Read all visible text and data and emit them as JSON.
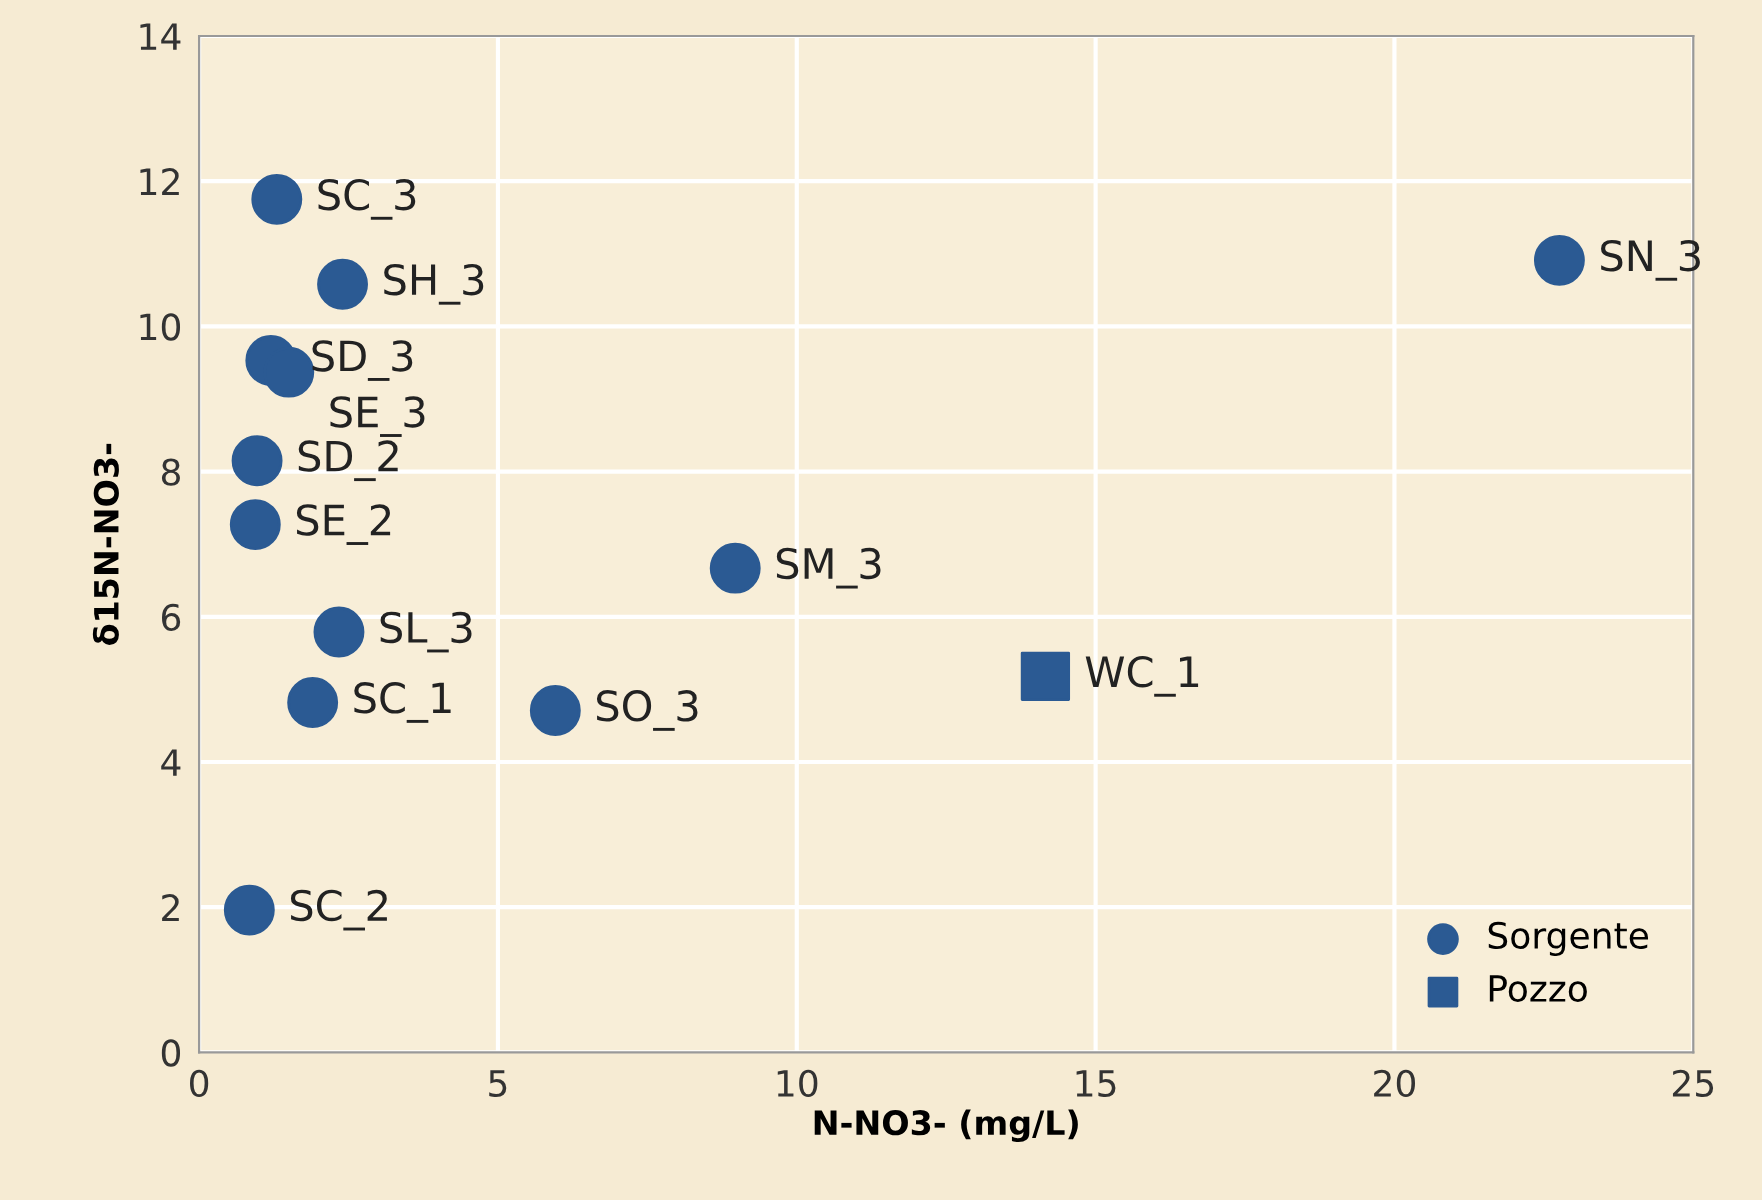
{
  "chart_data": {
    "type": "scatter",
    "xlabel": "N-NO3- (mg/L)",
    "ylabel": "δ15N-NO3-",
    "xlim": [
      0,
      25
    ],
    "ylim": [
      0,
      14
    ],
    "xticks": [
      0,
      5,
      10,
      15,
      20,
      25
    ],
    "yticks": [
      0,
      2,
      4,
      6,
      8,
      10,
      12,
      14
    ],
    "grid": true,
    "legend": "bottom right",
    "series": [
      {
        "name": "Sorgente",
        "color": "#2b5a93",
        "marker": "circle",
        "x": [
          1.3,
          2.4,
          1.2,
          1.5,
          0.97,
          0.94,
          2.34,
          1.9,
          5.96,
          8.97,
          22.76,
          0.84
        ],
        "values": [
          11.75,
          10.58,
          9.53,
          9.37,
          8.15,
          7.27,
          5.79,
          4.82,
          4.71,
          6.67,
          10.91,
          1.96
        ]
      },
      {
        "name": "Pozzo",
        "color": "#2b5a93",
        "marker": "square",
        "x": [
          14.16
        ],
        "values": [
          5.18
        ]
      }
    ],
    "annotations": [
      {
        "text": "SC_3",
        "x": 1.3,
        "y": 11.75
      },
      {
        "text": "SH_3",
        "x": 2.4,
        "y": 10.58
      },
      {
        "text": "SD_3",
        "x": 1.2,
        "y": 9.53
      },
      {
        "text": "SE_3",
        "x": 1.5,
        "y": 9.37
      },
      {
        "text": "SD_2",
        "x": 0.97,
        "y": 8.15
      },
      {
        "text": "SE_2",
        "x": 0.94,
        "y": 7.27
      },
      {
        "text": "SL_3",
        "x": 2.34,
        "y": 5.79
      },
      {
        "text": "SC_1",
        "x": 1.9,
        "y": 4.82
      },
      {
        "text": "SO_3",
        "x": 5.96,
        "y": 4.71
      },
      {
        "text": "SM_3",
        "x": 8.97,
        "y": 6.67
      },
      {
        "text": "SN_3",
        "x": 22.76,
        "y": 10.91
      },
      {
        "text": "SC_2",
        "x": 0.84,
        "y": 1.96
      },
      {
        "text": "WC_1",
        "x": 14.16,
        "y": 5.18
      }
    ]
  }
}
